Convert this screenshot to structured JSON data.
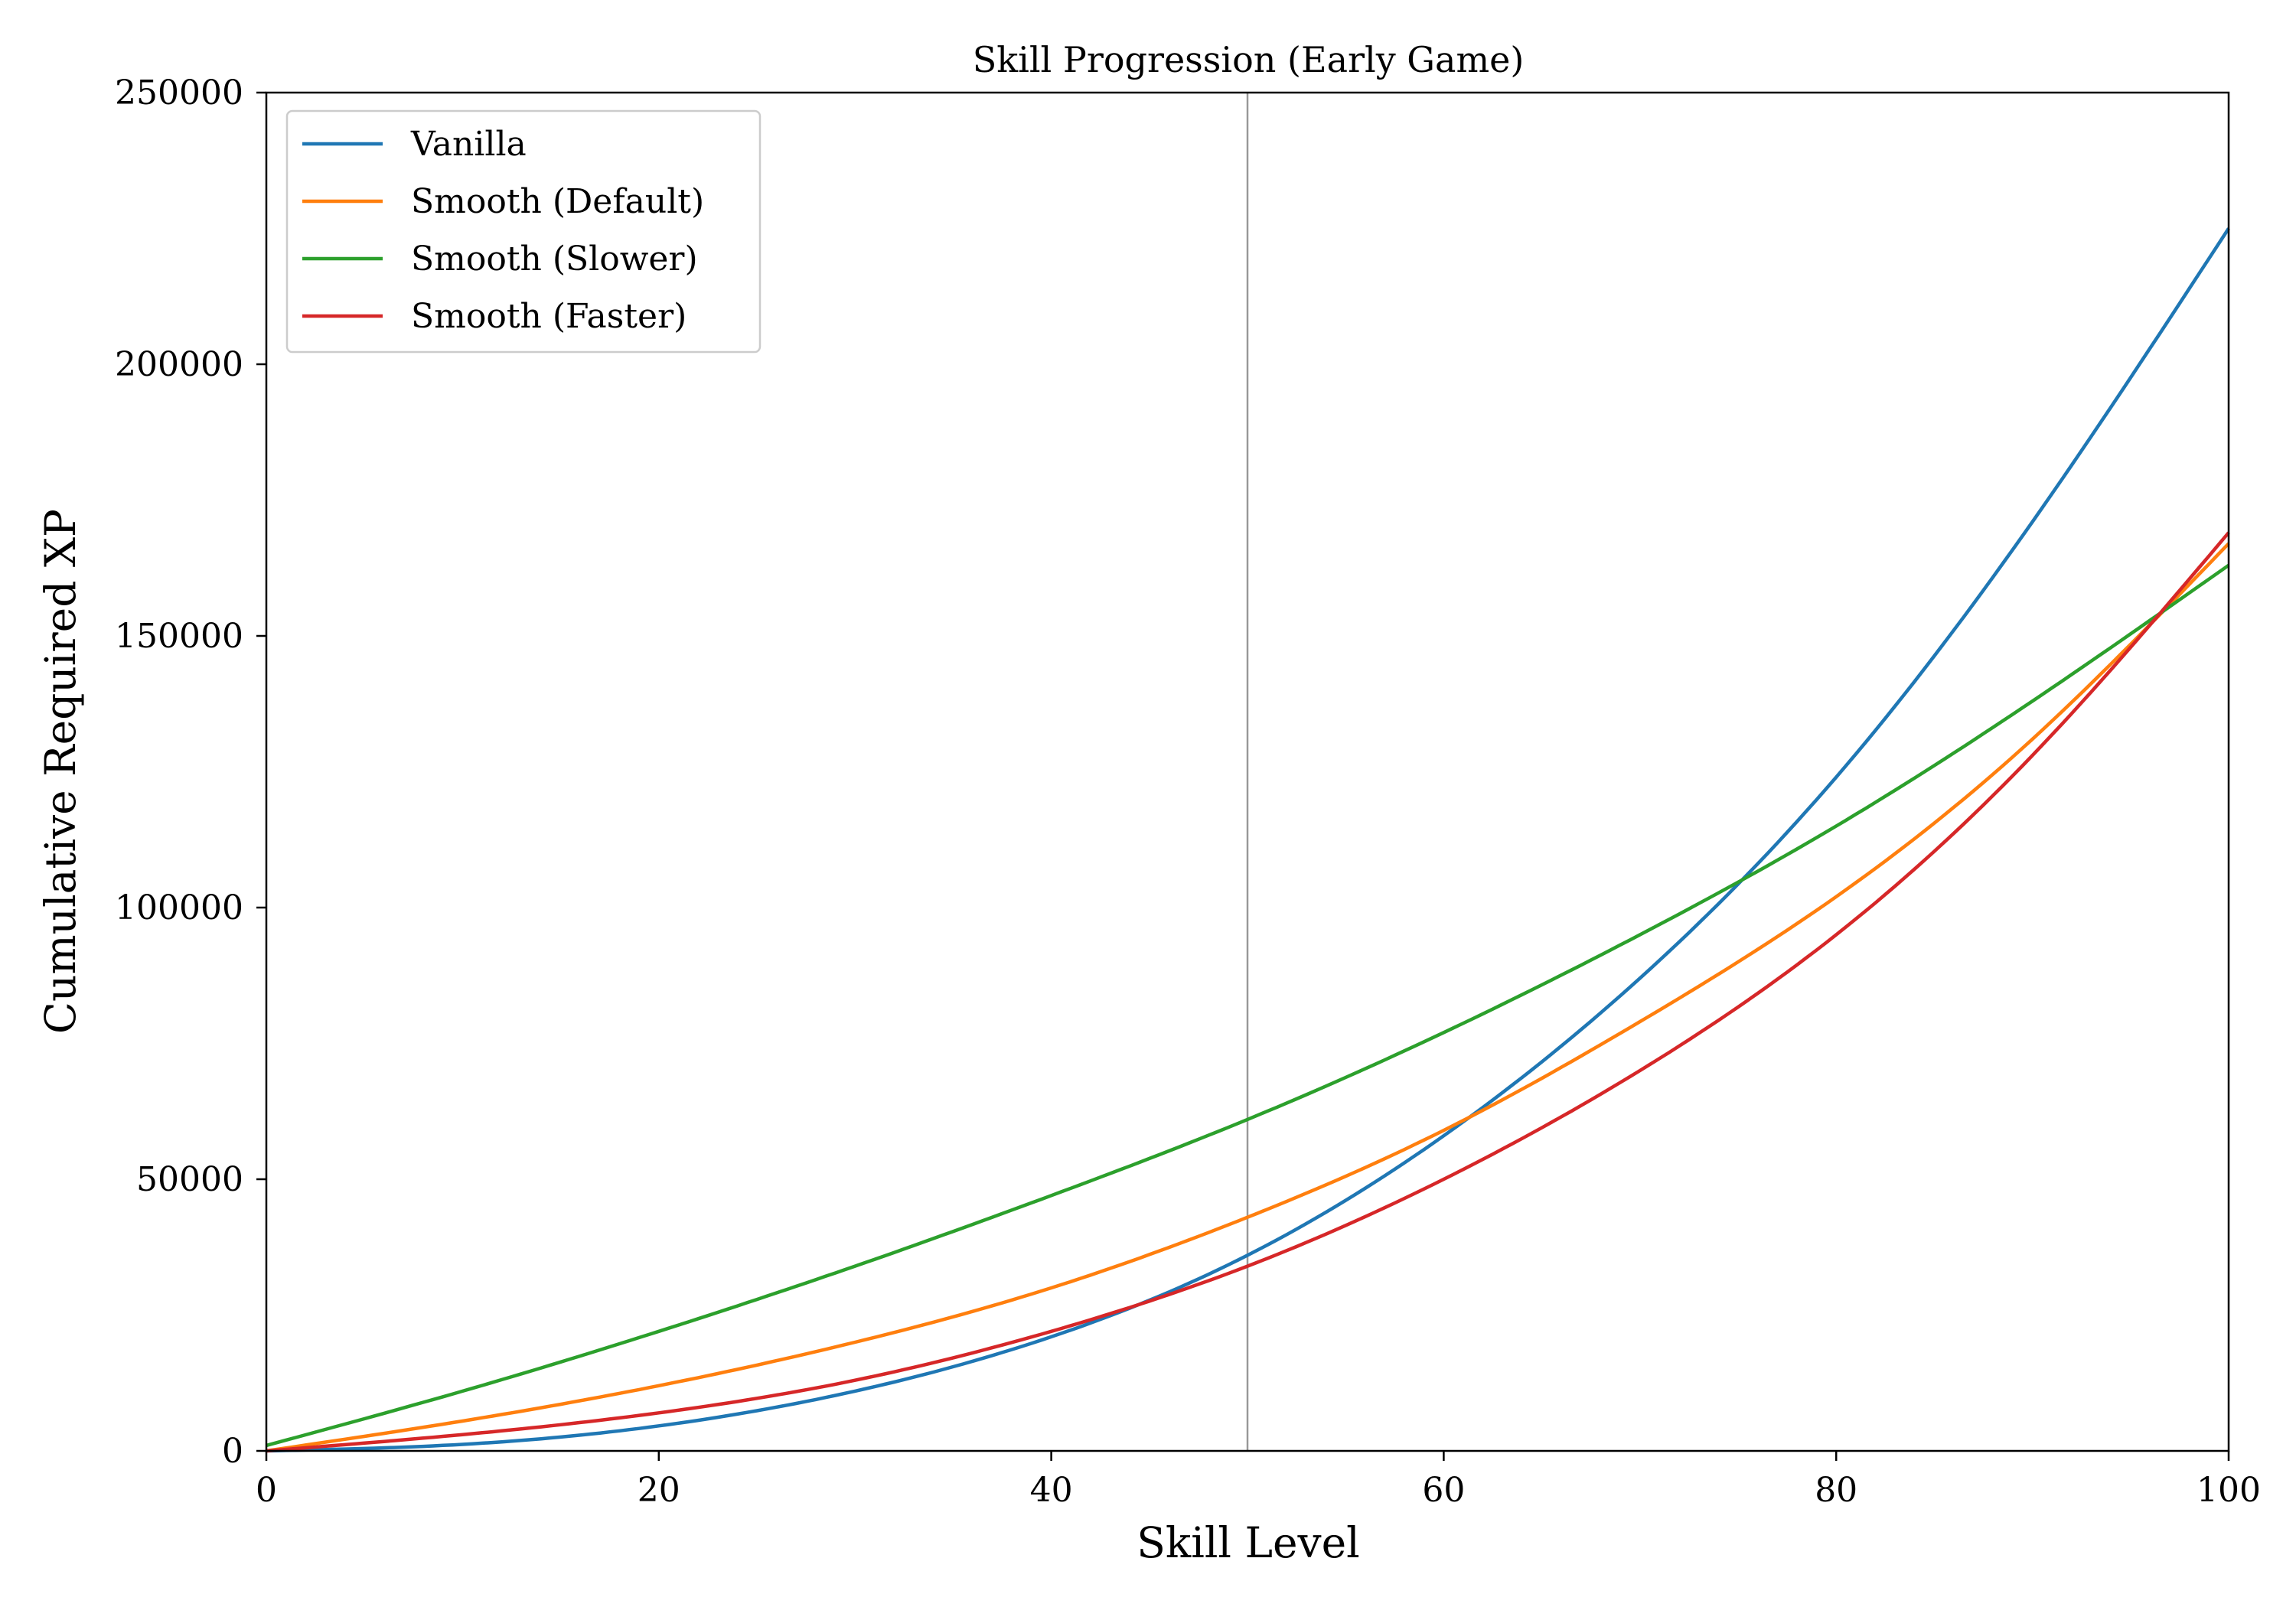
{
  "chart_data": {
    "type": "line",
    "title": "Skill Progression (Early Game)",
    "xlabel": "Skill Level",
    "ylabel": "Cumulative Required XP",
    "xlim": [
      0,
      100
    ],
    "ylim": [
      0,
      250000
    ],
    "x_ticks": [
      "0",
      "20",
      "40",
      "60",
      "80",
      "100"
    ],
    "y_ticks": [
      "0",
      "50000",
      "100000",
      "150000",
      "200000",
      "250000"
    ],
    "grid": false,
    "legend_position": "upper-left",
    "vertical_reference_line": {
      "x": 50,
      "color": "#999999"
    },
    "x": [
      0,
      10,
      20,
      30,
      40,
      50,
      60,
      70,
      80,
      90,
      100
    ],
    "series": [
      {
        "name": "Vanilla",
        "color": "#1f77b4",
        "values": [
          0,
          1200,
          4600,
          11000,
          21000,
          36000,
          58000,
          87000,
          124000,
          171000,
          225000
        ]
      },
      {
        "name": "Smooth (Default)",
        "color": "#ff7f0e",
        "values": [
          0,
          5500,
          12000,
          20000,
          30000,
          43000,
          59000,
          79000,
          102000,
          131000,
          167000
        ]
      },
      {
        "name": "Smooth (Slower)",
        "color": "#2ca02c",
        "values": [
          1000,
          11000,
          22000,
          34000,
          47000,
          61000,
          77000,
          95000,
          115000,
          138000,
          163000
        ]
      },
      {
        "name": "Smooth (Faster)",
        "color": "#d62728",
        "values": [
          0,
          3000,
          7000,
          13000,
          22000,
          34000,
          50000,
          70000,
          95000,
          128000,
          169000
        ]
      }
    ]
  }
}
